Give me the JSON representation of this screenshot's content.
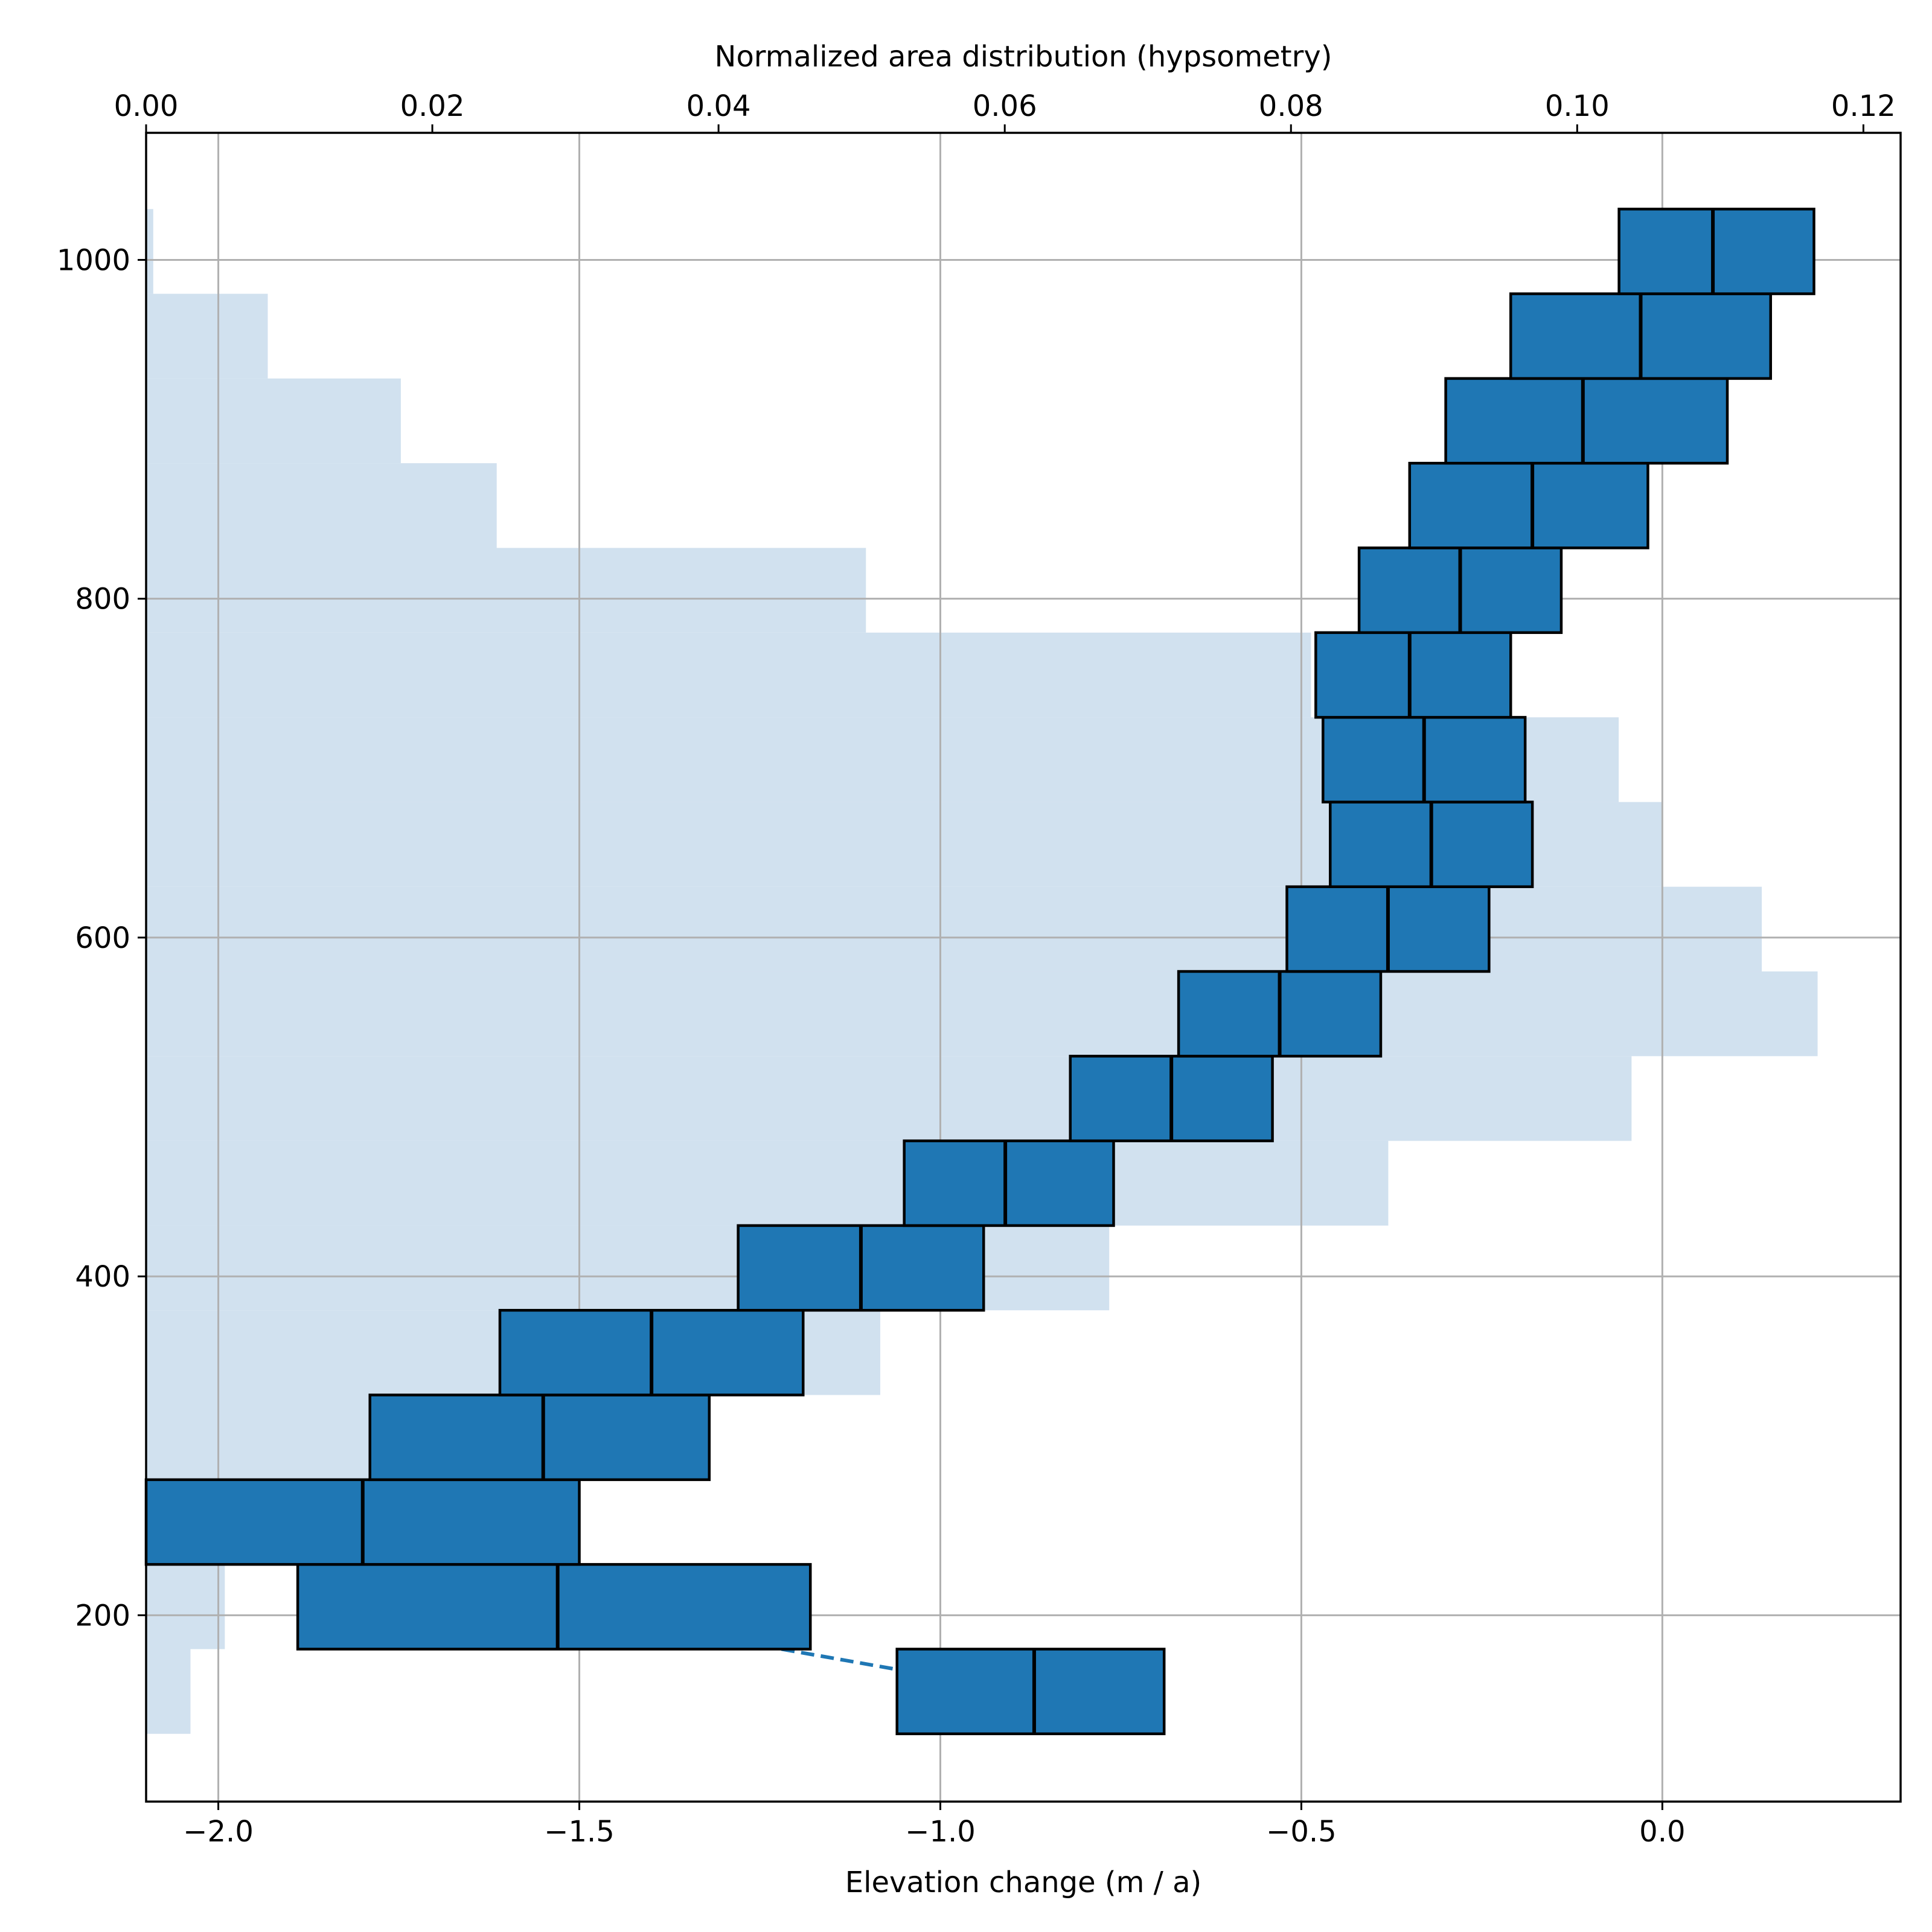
{
  "chart_data": {
    "type": "bar",
    "xlabel": "Elevation change (m / a)",
    "x2label": "Normalized area distribution (hypsometry)",
    "xlim": [
      -2.1,
      0.33
    ],
    "x2lim": [
      0.0,
      0.1226
    ],
    "ylim": [
      90,
      1075
    ],
    "grid": true,
    "x_ticks": [
      {
        "value": -2.0,
        "label": "−2.0"
      },
      {
        "value": -1.5,
        "label": "−1.5"
      },
      {
        "value": -1.0,
        "label": "−1.0"
      },
      {
        "value": -0.5,
        "label": "−0.5"
      },
      {
        "value": 0.0,
        "label": "0.0"
      }
    ],
    "x2_ticks": [
      {
        "value": 0.0,
        "label": "0.00"
      },
      {
        "value": 0.02,
        "label": "0.02"
      },
      {
        "value": 0.04,
        "label": "0.04"
      },
      {
        "value": 0.06,
        "label": "0.06"
      },
      {
        "value": 0.08,
        "label": "0.08"
      },
      {
        "value": 0.1,
        "label": "0.10"
      },
      {
        "value": 0.12,
        "label": "0.12"
      }
    ],
    "y_ticks": [
      {
        "value": 200,
        "label": "200"
      },
      {
        "value": 400,
        "label": "400"
      },
      {
        "value": 600,
        "label": "600"
      },
      {
        "value": 800,
        "label": "800"
      },
      {
        "value": 1000,
        "label": "1000"
      }
    ],
    "hypsometry": [
      {
        "bin": [
          130,
          180
        ],
        "area": 0.0031
      },
      {
        "bin": [
          180,
          230
        ],
        "area": 0.0055
      },
      {
        "bin": [
          230,
          280
        ],
        "area": 0.015
      },
      {
        "bin": [
          280,
          330
        ],
        "area": 0.0353
      },
      {
        "bin": [
          330,
          380
        ],
        "area": 0.0513
      },
      {
        "bin": [
          380,
          430
        ],
        "area": 0.0673
      },
      {
        "bin": [
          430,
          480
        ],
        "area": 0.0868
      },
      {
        "bin": [
          480,
          530
        ],
        "area": 0.1038
      },
      {
        "bin": [
          530,
          580
        ],
        "area": 0.1168
      },
      {
        "bin": [
          580,
          630
        ],
        "area": 0.1129
      },
      {
        "bin": [
          630,
          680
        ],
        "area": 0.106
      },
      {
        "bin": [
          680,
          730
        ],
        "area": 0.1029
      },
      {
        "bin": [
          730,
          780
        ],
        "area": 0.0814
      },
      {
        "bin": [
          780,
          830
        ],
        "area": 0.0503
      },
      {
        "bin": [
          830,
          880
        ],
        "area": 0.0245
      },
      {
        "bin": [
          880,
          930
        ],
        "area": 0.0178
      },
      {
        "bin": [
          930,
          980
        ],
        "area": 0.0085
      },
      {
        "bin": [
          980,
          1030
        ],
        "area": 0.0005
      }
    ],
    "elevation_change": [
      {
        "bin": [
          130,
          180
        ],
        "low": -1.06,
        "median": -0.87,
        "high": -0.69
      },
      {
        "bin": [
          180,
          230
        ],
        "low": -1.89,
        "median": -1.53,
        "high": -1.18
      },
      {
        "bin": [
          230,
          280
        ],
        "low": -2.1,
        "median": -1.8,
        "high": -1.5
      },
      {
        "bin": [
          280,
          330
        ],
        "low": -1.79,
        "median": -1.55,
        "high": -1.32
      },
      {
        "bin": [
          330,
          380
        ],
        "low": -1.61,
        "median": -1.4,
        "high": -1.19
      },
      {
        "bin": [
          380,
          430
        ],
        "low": -1.28,
        "median": -1.11,
        "high": -0.94
      },
      {
        "bin": [
          430,
          480
        ],
        "low": -1.05,
        "median": -0.91,
        "high": -0.76
      },
      {
        "bin": [
          480,
          530
        ],
        "low": -0.82,
        "median": -0.68,
        "high": -0.54
      },
      {
        "bin": [
          530,
          580
        ],
        "low": -0.67,
        "median": -0.53,
        "high": -0.39
      },
      {
        "bin": [
          580,
          630
        ],
        "low": -0.52,
        "median": -0.38,
        "high": -0.24
      },
      {
        "bin": [
          630,
          680
        ],
        "low": -0.46,
        "median": -0.32,
        "high": -0.18
      },
      {
        "bin": [
          680,
          730
        ],
        "low": -0.47,
        "median": -0.33,
        "high": -0.19
      },
      {
        "bin": [
          730,
          780
        ],
        "low": -0.48,
        "median": -0.35,
        "high": -0.21
      },
      {
        "bin": [
          780,
          830
        ],
        "low": -0.42,
        "median": -0.28,
        "high": -0.14
      },
      {
        "bin": [
          830,
          880
        ],
        "low": -0.35,
        "median": -0.18,
        "high": -0.02
      },
      {
        "bin": [
          880,
          930
        ],
        "low": -0.3,
        "median": -0.11,
        "high": 0.09
      },
      {
        "bin": [
          930,
          980
        ],
        "low": -0.21,
        "median": -0.03,
        "high": 0.15
      },
      {
        "bin": [
          980,
          1030
        ],
        "low": -0.06,
        "median": 0.07,
        "high": 0.21
      }
    ],
    "gap_link": {
      "from": [
        -1.22,
        180
      ],
      "to": [
        -1.06,
        168
      ]
    }
  }
}
